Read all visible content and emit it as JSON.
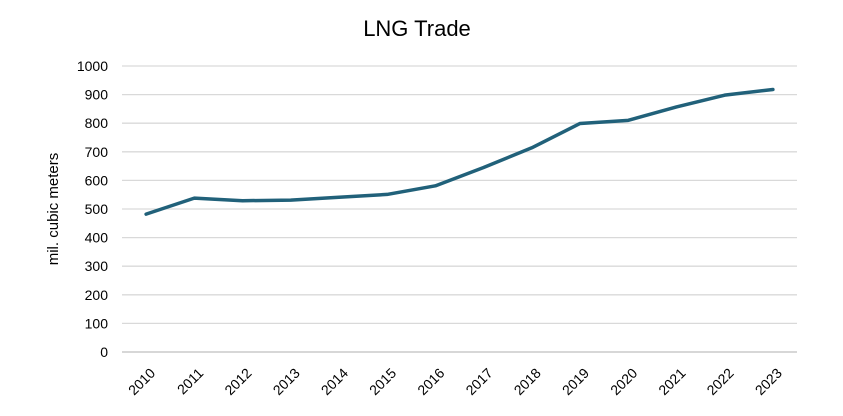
{
  "chart_data": {
    "type": "line",
    "title": "LNG Trade",
    "xlabel": "",
    "ylabel": "mil. cubic meters",
    "ylim": [
      0,
      1000
    ],
    "yticks": [
      0,
      100,
      200,
      300,
      400,
      500,
      600,
      700,
      800,
      900,
      1000
    ],
    "grid": true,
    "legend": "none",
    "categories": [
      "2010",
      "2011",
      "2012",
      "2013",
      "2014",
      "2015",
      "2016",
      "2017",
      "2018",
      "2019",
      "2020",
      "2021",
      "2022",
      "2023"
    ],
    "series": [
      {
        "name": "LNG Trade",
        "color": "#21617a",
        "values": [
          482,
          538,
          529,
          531,
          541,
          551,
          581,
          645,
          714,
          799,
          810,
          857,
          898,
          918
        ]
      }
    ]
  }
}
